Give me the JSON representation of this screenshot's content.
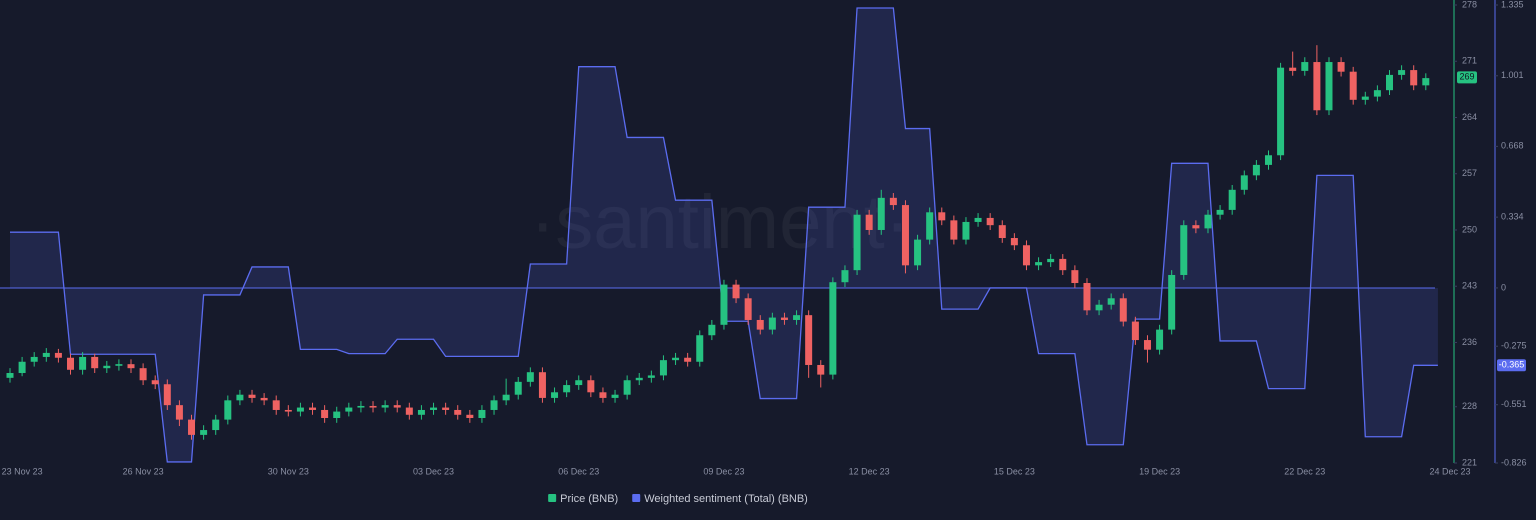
{
  "chart_data": {
    "type": "candlestick",
    "watermark": "·santiment·",
    "categories": [
      null,
      "23 Nov 23",
      null,
      null,
      null,
      null,
      null,
      null,
      null,
      null,
      null,
      "26 Nov 23",
      null,
      null,
      null,
      null,
      null,
      null,
      null,
      null,
      null,
      null,
      null,
      "30 Nov 23",
      null,
      null,
      null,
      null,
      null,
      null,
      null,
      null,
      null,
      null,
      null,
      "03 Dec 23",
      null,
      null,
      null,
      null,
      null,
      null,
      null,
      null,
      null,
      null,
      null,
      "06 Dec 23",
      null,
      null,
      null,
      null,
      null,
      null,
      null,
      null,
      null,
      null,
      null,
      "09 Dec 23",
      null,
      null,
      null,
      null,
      null,
      null,
      null,
      null,
      null,
      null,
      null,
      "12 Dec 23",
      null,
      null,
      null,
      null,
      null,
      null,
      null,
      null,
      null,
      null,
      null,
      "15 Dec 23",
      null,
      null,
      null,
      null,
      null,
      null,
      null,
      null,
      null,
      null,
      null,
      "19 Dec 23",
      null,
      null,
      null,
      null,
      null,
      null,
      null,
      null,
      null,
      null,
      null,
      "22 Dec 23",
      null,
      null,
      null,
      null,
      null,
      null,
      null,
      null,
      null,
      null,
      null,
      "24 Dec 23"
    ],
    "ylim": [
      221,
      278
    ],
    "yticks": [
      221,
      228,
      236,
      243,
      250,
      257,
      264,
      271,
      278
    ],
    "y2lim": [
      -0.826,
      1.335
    ],
    "y2ticks": [
      -0.826,
      -0.551,
      -0.275,
      0,
      0.334,
      0.668,
      1.001,
      1.335
    ],
    "series": [
      {
        "name": "Price (BNB)",
        "type": "candlestick",
        "color": "#26c281",
        "down_color": "#ef6262",
        "last_label": 269,
        "open": [
          231.6,
          232.2,
          233.6,
          234.2,
          234.7,
          234.1,
          232.6,
          234.2,
          232.8,
          233.1,
          233.3,
          232.8,
          231.3,
          230.8,
          228.2,
          226.4,
          224.5,
          225.1,
          226.4,
          228.8,
          229.5,
          229.1,
          228.8,
          227.6,
          227.4,
          227.9,
          227.6,
          226.6,
          227.4,
          227.9,
          228.1,
          227.9,
          228.2,
          227.9,
          227.0,
          227.6,
          227.9,
          227.6,
          227.0,
          226.6,
          227.6,
          228.8,
          229.5,
          231.1,
          232.3,
          229.1,
          229.8,
          230.7,
          231.3,
          229.8,
          229.1,
          229.5,
          231.3,
          231.6,
          231.9,
          233.8,
          234.1,
          233.6,
          236.9,
          238.2,
          243.2,
          241.5,
          238.8,
          237.6,
          239.1,
          238.8,
          239.4,
          233.2,
          232.0,
          243.5,
          245.0,
          251.9,
          250.0,
          254.0,
          253.1,
          245.6,
          248.8,
          252.2,
          251.2,
          248.8,
          251.0,
          251.5,
          250.6,
          249.0,
          248.1,
          245.6,
          246.0,
          246.4,
          245.0,
          243.4,
          240.0,
          240.7,
          241.5,
          238.6,
          236.3,
          235.1,
          237.6,
          244.4,
          250.6,
          250.2,
          251.9,
          252.5,
          255.0,
          256.8,
          258.1,
          259.3,
          270.2,
          269.8,
          270.9,
          264.9,
          270.9,
          269.7,
          266.2,
          266.6,
          267.4,
          269.3,
          269.9,
          268.0,
          null,
          null
        ],
        "high": [
          232.8,
          234.2,
          234.8,
          235.3,
          235.2,
          234.6,
          234.8,
          234.6,
          233.7,
          233.9,
          233.9,
          233.4,
          231.9,
          231.4,
          228.8,
          227.0,
          225.7,
          227.0,
          229.4,
          230.1,
          230.1,
          229.7,
          229.4,
          228.2,
          228.5,
          228.5,
          228.2,
          228.0,
          228.5,
          228.7,
          228.7,
          228.8,
          228.8,
          228.5,
          228.2,
          228.5,
          228.5,
          228.2,
          227.6,
          228.2,
          229.4,
          231.5,
          231.7,
          232.9,
          232.9,
          230.4,
          231.3,
          231.9,
          231.9,
          230.4,
          230.1,
          231.9,
          232.2,
          232.5,
          234.4,
          234.7,
          234.7,
          237.5,
          238.8,
          243.8,
          243.8,
          242.1,
          239.4,
          239.7,
          239.7,
          240.0,
          240.0,
          233.8,
          244.1,
          245.6,
          252.5,
          252.5,
          255.0,
          254.6,
          253.7,
          249.4,
          252.8,
          252.8,
          251.8,
          251.6,
          252.1,
          252.1,
          251.2,
          249.6,
          248.7,
          246.6,
          247.0,
          247.0,
          245.6,
          244.0,
          241.3,
          242.1,
          242.1,
          239.2,
          236.9,
          238.2,
          245.0,
          251.2,
          251.2,
          252.5,
          253.1,
          255.6,
          257.4,
          258.7,
          259.9,
          270.8,
          272.2,
          271.5,
          273.0,
          271.5,
          271.5,
          270.3,
          267.2,
          268.0,
          269.9,
          270.5,
          270.5,
          269.5,
          null,
          null
        ],
        "low": [
          231.0,
          231.8,
          233.0,
          233.6,
          233.5,
          232.0,
          232.0,
          232.2,
          232.2,
          232.5,
          232.2,
          230.7,
          230.2,
          227.6,
          225.6,
          223.9,
          223.9,
          224.5,
          225.8,
          228.2,
          228.5,
          228.2,
          227.0,
          226.8,
          226.8,
          227.0,
          226.0,
          226.0,
          226.8,
          227.3,
          227.3,
          227.3,
          227.3,
          226.4,
          226.4,
          227.0,
          227.0,
          226.4,
          226.0,
          226.0,
          227.0,
          228.2,
          228.9,
          230.5,
          228.5,
          228.5,
          229.2,
          230.1,
          229.2,
          228.5,
          228.5,
          228.9,
          230.7,
          231.0,
          231.3,
          233.2,
          233.0,
          233.0,
          236.3,
          237.6,
          240.9,
          238.2,
          237.0,
          237.0,
          238.2,
          238.2,
          231.6,
          230.4,
          231.4,
          242.9,
          244.4,
          249.4,
          249.4,
          252.5,
          244.6,
          245.0,
          248.2,
          250.6,
          248.2,
          248.2,
          250.4,
          250.0,
          248.4,
          247.5,
          245.0,
          245.0,
          245.4,
          244.4,
          242.8,
          239.4,
          239.4,
          240.1,
          238.0,
          235.7,
          233.5,
          234.5,
          237.0,
          243.8,
          249.6,
          249.6,
          251.3,
          251.9,
          254.4,
          256.2,
          257.5,
          258.7,
          269.2,
          269.2,
          264.3,
          264.3,
          269.1,
          265.6,
          265.6,
          266.0,
          266.8,
          268.7,
          267.4,
          267.4,
          null,
          null
        ],
        "close": [
          232.2,
          233.6,
          234.2,
          234.7,
          234.1,
          232.6,
          234.2,
          232.8,
          233.1,
          233.3,
          232.8,
          231.3,
          230.8,
          228.2,
          226.4,
          224.5,
          225.1,
          226.4,
          228.8,
          229.5,
          229.1,
          228.8,
          227.6,
          227.4,
          227.9,
          227.6,
          226.6,
          227.4,
          227.9,
          228.1,
          227.9,
          228.2,
          227.9,
          227.0,
          227.6,
          227.9,
          227.6,
          227.0,
          226.6,
          227.6,
          228.8,
          229.5,
          231.1,
          232.3,
          229.1,
          229.8,
          230.7,
          231.3,
          229.8,
          229.1,
          229.5,
          231.3,
          231.6,
          231.9,
          233.8,
          234.1,
          233.6,
          236.9,
          238.2,
          243.2,
          241.5,
          238.8,
          237.6,
          239.1,
          238.8,
          239.4,
          233.2,
          232.0,
          243.5,
          245.0,
          251.9,
          250.0,
          254.0,
          253.1,
          245.6,
          248.8,
          252.2,
          251.2,
          248.8,
          251.0,
          251.5,
          250.6,
          249.0,
          248.1,
          245.6,
          246.0,
          246.4,
          245.0,
          243.4,
          240.0,
          240.7,
          241.5,
          238.6,
          236.3,
          235.1,
          237.6,
          244.4,
          250.6,
          250.2,
          251.9,
          252.5,
          255.0,
          256.8,
          258.1,
          259.3,
          270.2,
          269.8,
          270.9,
          264.9,
          270.9,
          269.7,
          266.2,
          266.6,
          267.4,
          269.3,
          269.9,
          268.0,
          268.9,
          null,
          null
        ]
      },
      {
        "name": "Weighted sentiment (Total) (BNB)",
        "type": "line",
        "axis": "y2",
        "color": "#5b6cf0",
        "last_label": -0.365,
        "values": [
          0.263,
          0.263,
          0.263,
          0.263,
          0.263,
          -0.313,
          -0.313,
          -0.313,
          -0.313,
          -0.313,
          -0.313,
          -0.313,
          -0.313,
          -0.821,
          -0.821,
          -0.821,
          -0.033,
          -0.033,
          -0.033,
          -0.033,
          0.099,
          0.099,
          0.099,
          0.099,
          -0.29,
          -0.29,
          -0.29,
          -0.29,
          -0.31,
          -0.31,
          -0.31,
          -0.31,
          -0.242,
          -0.242,
          -0.242,
          -0.242,
          -0.323,
          -0.323,
          -0.323,
          -0.323,
          -0.323,
          -0.323,
          -0.323,
          0.113,
          0.113,
          0.113,
          0.113,
          1.044,
          1.044,
          1.044,
          1.044,
          0.71,
          0.71,
          0.71,
          0.71,
          0.414,
          0.414,
          0.414,
          0.414,
          -0.157,
          -0.157,
          -0.157,
          -0.522,
          -0.522,
          -0.522,
          -0.522,
          0.381,
          0.381,
          0.381,
          0.381,
          1.321,
          1.321,
          1.321,
          1.321,
          0.752,
          0.752,
          0.752,
          -0.1,
          -0.1,
          -0.1,
          -0.1,
          0,
          0,
          0,
          0,
          -0.31,
          -0.31,
          -0.31,
          -0.31,
          -0.74,
          -0.74,
          -0.74,
          -0.74,
          -0.147,
          -0.147,
          -0.147,
          0.588,
          0.588,
          0.588,
          0.588,
          -0.25,
          -0.25,
          -0.25,
          -0.25,
          -0.475,
          -0.475,
          -0.475,
          -0.475,
          0.531,
          0.531,
          0.531,
          0.531,
          -0.702,
          -0.702,
          -0.702,
          -0.702,
          -0.365,
          -0.365,
          -0.365,
          null
        ]
      }
    ]
  }
}
